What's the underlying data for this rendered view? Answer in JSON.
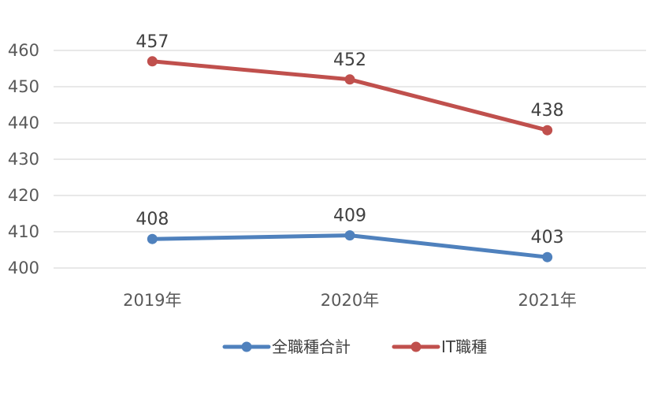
{
  "chart_data": {
    "type": "line",
    "categories": [
      "2019年",
      "2020年",
      "2021年"
    ],
    "series": [
      {
        "name": "全職種合計",
        "values": [
          408,
          409,
          403
        ],
        "color": "#4f81bd"
      },
      {
        "name": "IT職種",
        "values": [
          457,
          452,
          438
        ],
        "color": "#c0504d"
      }
    ],
    "ylim": [
      400,
      460
    ],
    "yticks": [
      400,
      410,
      420,
      430,
      440,
      450,
      460
    ],
    "grid": true,
    "legend_position": "bottom",
    "data_labels": true
  }
}
